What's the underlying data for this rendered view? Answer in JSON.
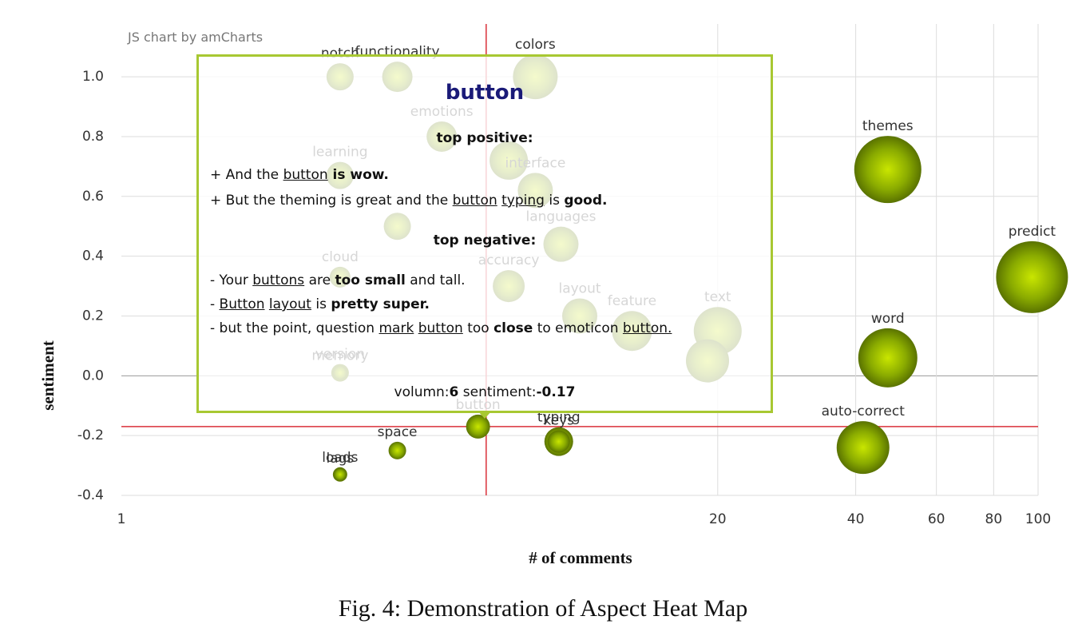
{
  "chart_data": {
    "type": "bubble",
    "credit": "JS chart by amCharts",
    "x_label": "# of comments",
    "y_label": "sentiment",
    "x_log": true,
    "grid": true,
    "xlim": [
      1,
      100
    ],
    "xticks": [
      1,
      20,
      40,
      60,
      80,
      100
    ],
    "ylim": [
      -0.4,
      1.15
    ],
    "yticks": [
      {
        "value": -0.4,
        "label": "-0.4"
      },
      {
        "value": -0.2,
        "label": "-0.2"
      },
      {
        "value": 0,
        "label": "0.0"
      },
      {
        "value": 0.2,
        "label": "0.2"
      },
      {
        "value": 0.4,
        "label": "0.4"
      },
      {
        "value": 0.6,
        "label": "0.6"
      },
      {
        "value": 0.8,
        "label": "0.8"
      },
      {
        "value": 1,
        "label": "1.0"
      }
    ],
    "x_reference": 6.25,
    "y_reference": -0.17,
    "reference_color": "#d9303a",
    "points": [
      {
        "label": "notch",
        "x": 3,
        "y": 1.0,
        "size": 17
      },
      {
        "label": "functionality",
        "x": 4,
        "y": 1.0,
        "size": 19
      },
      {
        "label": "colors",
        "x": 8,
        "y": 1.0,
        "size": 28
      },
      {
        "label": "emotions",
        "x": 5,
        "y": 0.8,
        "size": 19
      },
      {
        "label": null,
        "x": 7,
        "y": 0.72,
        "size": 24
      },
      {
        "label": "interface",
        "x": 8,
        "y": 0.62,
        "size": 22
      },
      {
        "label": "learning",
        "x": 3,
        "y": 0.67,
        "size": 17
      },
      {
        "label": null,
        "x": 4,
        "y": 0.5,
        "size": 17
      },
      {
        "label": "languages",
        "x": 9.1,
        "y": 0.44,
        "size": 22
      },
      {
        "label": "cloud",
        "x": 3,
        "y": 0.33,
        "size": 13
      },
      {
        "label": "accuracy",
        "x": 7,
        "y": 0.3,
        "size": 20
      },
      {
        "label": "layout",
        "x": 10,
        "y": 0.2,
        "size": 22
      },
      {
        "label": "feature",
        "x": 13,
        "y": 0.15,
        "size": 25
      },
      {
        "label": "text",
        "x": 20,
        "y": 0.15,
        "size": 30
      },
      {
        "label": null,
        "x": 19,
        "y": 0.05,
        "size": 27
      },
      {
        "label": "version",
        "x": 3,
        "y": 0.01,
        "size": 11
      },
      {
        "label": "memory",
        "x": 3,
        "y": 0.01,
        "size": 9
      },
      {
        "label": "button",
        "x": 6,
        "y": -0.17,
        "size": 15
      },
      {
        "label": "typing",
        "x": 9,
        "y": -0.22,
        "size": 18
      },
      {
        "label": "keys",
        "x": 9,
        "y": -0.22,
        "size": 14
      },
      {
        "label": "space",
        "x": 4,
        "y": -0.25,
        "size": 11
      },
      {
        "label": "loads",
        "x": 3,
        "y": -0.33,
        "size": 9
      },
      {
        "label": "lags",
        "x": 3,
        "y": -0.33,
        "size": 8
      },
      {
        "label": "themes",
        "x": 47,
        "y": 0.69,
        "size": 42
      },
      {
        "label": "predict",
        "x": 97,
        "y": 0.33,
        "size": 45
      },
      {
        "label": "word",
        "x": 47,
        "y": 0.06,
        "size": 37
      },
      {
        "label": "auto-correct",
        "x": 41.5,
        "y": -0.24,
        "size": 33
      }
    ],
    "tooltip": {
      "title": "button",
      "positive_heading": "top positive:",
      "positive": [
        [
          {
            "text": "+ And the ",
            "style": "plain"
          },
          {
            "text": "button",
            "style": "u"
          },
          {
            "text": " is wow.",
            "style": "b"
          }
        ],
        [
          {
            "text": "+ But the theming is great and the ",
            "style": "plain"
          },
          {
            "text": "button",
            "style": "u"
          },
          {
            "text": " ",
            "style": "plain"
          },
          {
            "text": "typing",
            "style": "u"
          },
          {
            "text": " is ",
            "style": "plain"
          },
          {
            "text": "good.",
            "style": "b"
          }
        ]
      ],
      "negative_heading": "top negative:",
      "negative": [
        [
          {
            "text": "- Your ",
            "style": "plain"
          },
          {
            "text": "buttons",
            "style": "u"
          },
          {
            "text": " are ",
            "style": "plain"
          },
          {
            "text": "too small",
            "style": "b"
          },
          {
            "text": " and tall.",
            "style": "plain"
          }
        ],
        [
          {
            "text": "- ",
            "style": "plain"
          },
          {
            "text": "Button",
            "style": "u"
          },
          {
            "text": " ",
            "style": "plain"
          },
          {
            "text": "layout",
            "style": "u"
          },
          {
            "text": " is ",
            "style": "plain"
          },
          {
            "text": "pretty super.",
            "style": "b"
          }
        ],
        [
          {
            "text": "- but the point, question ",
            "style": "plain"
          },
          {
            "text": "mark",
            "style": "u"
          },
          {
            "text": " ",
            "style": "plain"
          },
          {
            "text": "button",
            "style": "u"
          },
          {
            "text": " too ",
            "style": "plain"
          },
          {
            "text": "close",
            "style": "b"
          },
          {
            "text": " to emoticon ",
            "style": "plain"
          },
          {
            "text": "button.",
            "style": "u"
          }
        ]
      ],
      "footer": [
        {
          "text": "volumn:",
          "style": "plain"
        },
        {
          "text": "6",
          "style": "b"
        },
        {
          "text": " sentiment:",
          "style": "plain"
        },
        {
          "text": "-0.17",
          "style": "b"
        }
      ]
    },
    "caption": "Fig. 4: Demonstration of Aspect Heat Map"
  }
}
